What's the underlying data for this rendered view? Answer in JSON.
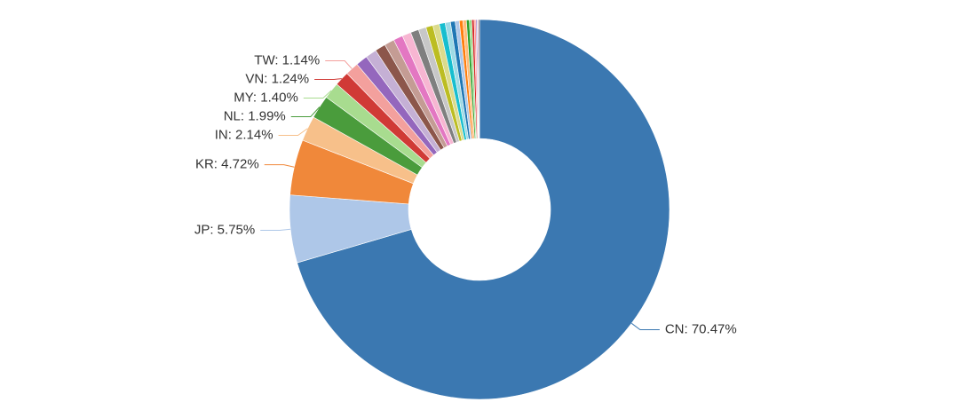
{
  "chart_data": {
    "type": "pie",
    "values": [
      70.47,
      5.75,
      4.72,
      2.14,
      1.99,
      1.4,
      1.24,
      1.14,
      1.0,
      0.95,
      0.9,
      0.85,
      0.8,
      0.75,
      0.7,
      0.65,
      0.6,
      0.55,
      0.5,
      0.45,
      0.4,
      0.35,
      0.3,
      0.3,
      0.25,
      0.2,
      0.2,
      0.15,
      0.1,
      0.1,
      0.1
    ],
    "value_labels": [
      "CN: 70.47%",
      "JP: 5.75%",
      "KR: 4.72%",
      "IN: 2.14%",
      "NL: 1.99%",
      "MY: 1.40%",
      "VN: 1.24%",
      "TW: 1.14%",
      null,
      null,
      null,
      null,
      null,
      null,
      null,
      null,
      null,
      null,
      null,
      null,
      null,
      null,
      null,
      null,
      null,
      null,
      null,
      null,
      null,
      null,
      null
    ],
    "colors": [
      "#3b78b1",
      "#aec7e8",
      "#f0883a",
      "#f7c08a",
      "#4a9c3c",
      "#a8dc8f",
      "#d03a36",
      "#f3a09d",
      "#9467bd",
      "#c5b0d5",
      "#8c564b",
      "#c49c94",
      "#e377c2",
      "#f7b6d2",
      "#7f7f7f",
      "#c7c7c7",
      "#bcbd22",
      "#dbdb8d",
      "#17becf",
      "#9edae5",
      "#1f77b4",
      "#aec7e8",
      "#ff7f0e",
      "#ffbb78",
      "#2ca02c",
      "#98df8a",
      "#d62728",
      "#ff9896",
      "#9467bd",
      "#c5b0d5",
      "#8c564b"
    ]
  }
}
